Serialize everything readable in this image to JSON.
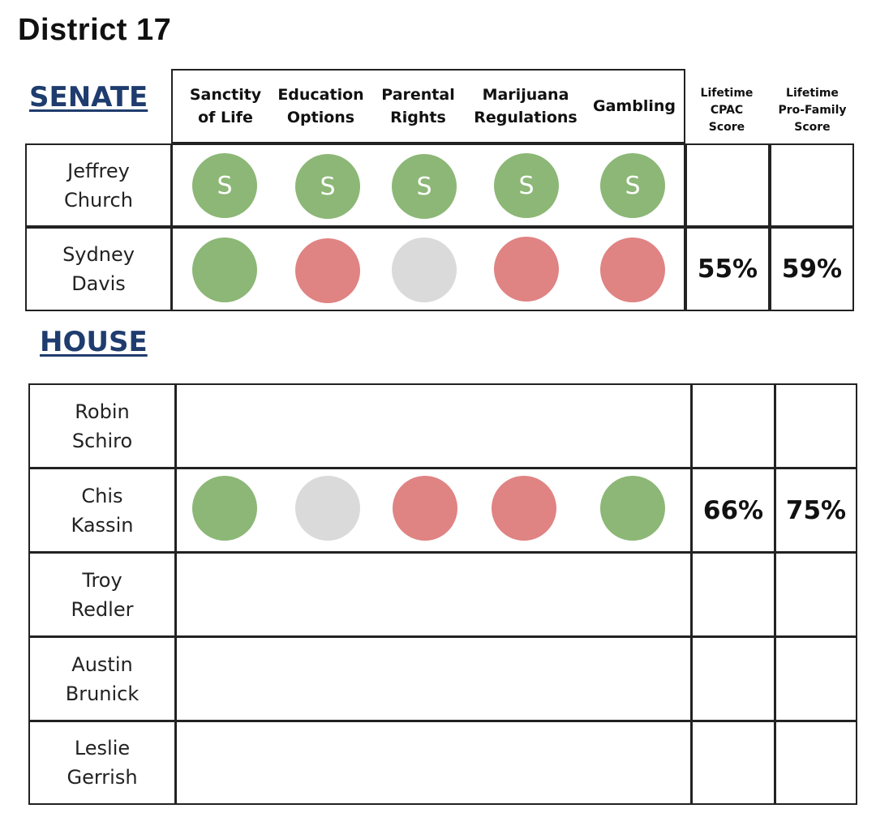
{
  "title": "District 17",
  "senate": {
    "label": "SENATE",
    "issues": [
      "Sanctity\nof Life",
      "Education\nOptions",
      "Parental\nRights",
      "Marijuana\nRegulations",
      "Gambling"
    ],
    "score_headers": {
      "cpac": "Lifetime\nCPAC\nScore",
      "profamily": "Lifetime\nPro-Family\nScore"
    },
    "candidates": [
      {
        "first": "Jeffrey",
        "last": "Church",
        "votes": [
          "green",
          "green",
          "green",
          "green",
          "green"
        ],
        "mark": "S",
        "cpac": "",
        "profamily": ""
      },
      {
        "first": "Sydney",
        "last": "Davis",
        "votes": [
          "green",
          "red",
          "gray",
          "red",
          "red"
        ],
        "mark": "",
        "cpac": "55%",
        "profamily": "59%"
      }
    ]
  },
  "house": {
    "label": "HOUSE",
    "candidates": [
      {
        "first": "Robin",
        "last": "Schiro",
        "votes": [],
        "cpac": "",
        "profamily": ""
      },
      {
        "first": "Chis",
        "last": "Kassin",
        "votes": [
          "green",
          "gray",
          "red",
          "red",
          "green"
        ],
        "cpac": "66%",
        "profamily": "75%"
      },
      {
        "first": "Troy",
        "last": "Redler",
        "votes": [],
        "cpac": "",
        "profamily": ""
      },
      {
        "first": "Austin",
        "last": "Brunick",
        "votes": [],
        "cpac": "",
        "profamily": ""
      },
      {
        "first": "Leslie",
        "last": "Gerrish",
        "votes": [],
        "cpac": "",
        "profamily": ""
      }
    ]
  },
  "colors": {
    "green": "#8cb776",
    "red": "#e08383",
    "gray": "#dadada",
    "section": "#1f3c6e"
  }
}
